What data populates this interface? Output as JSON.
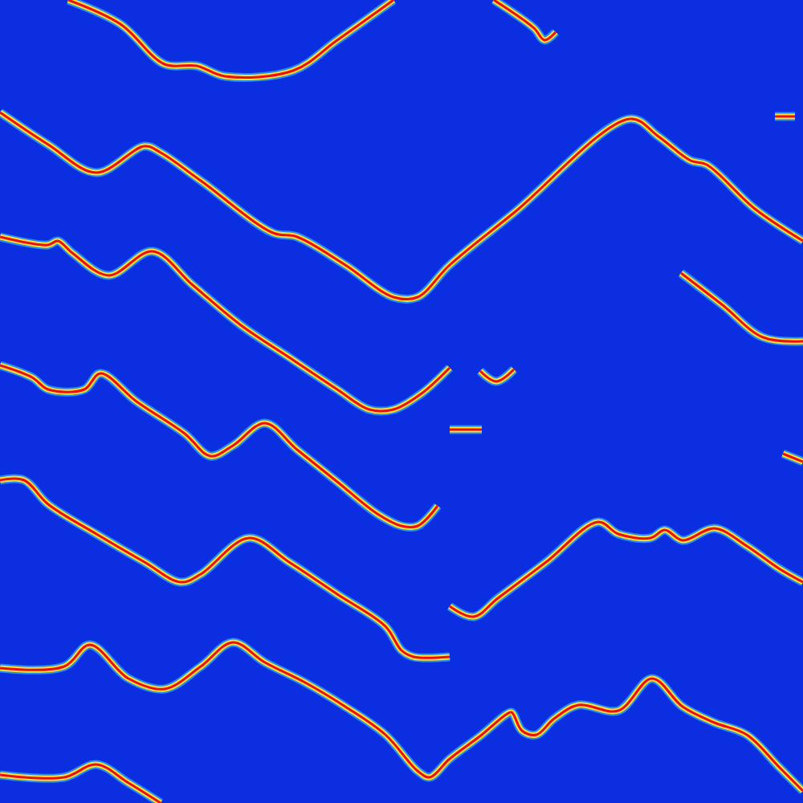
{
  "chart_data": {
    "type": "line",
    "xlim": [
      0,
      1000
    ],
    "ylim": [
      1000,
      0
    ],
    "xticks": [],
    "yticks": [],
    "grid": false,
    "tick_labels": false,
    "series": [
      {
        "color": "#e8101a",
        "x": [
          85,
          150,
          205,
          245,
          280,
          365,
          420,
          490
        ],
        "values": [
          0,
          30,
          80,
          82,
          95,
          88,
          50,
          0
        ]
      },
      {
        "color": "#e8101a",
        "x": [
          615,
          665,
          678,
          692
        ],
        "values": [
          0,
          35,
          50,
          40
        ]
      },
      {
        "color": "#e8101a",
        "x": [
          0,
          60,
          120,
          180,
          200,
          250,
          340,
          370,
          430,
          490,
          520,
          560,
          640,
          785,
          820,
          860,
          880,
          940,
          1000
        ],
        "values": [
          140,
          180,
          215,
          182,
          190,
          225,
          290,
          295,
          330,
          370,
          370,
          330,
          265,
          148,
          170,
          200,
          205,
          260,
          300
        ]
      },
      {
        "color": "#e8101a",
        "x": [
          965,
          990
        ],
        "values": [
          145,
          145
        ]
      },
      {
        "color": "#e8101a",
        "x": [
          0,
          60,
          72,
          90,
          135,
          190,
          240,
          300,
          360,
          420,
          460,
          490,
          525,
          560
        ],
        "values": [
          295,
          305,
          300,
          315,
          343,
          313,
          355,
          405,
          445,
          485,
          510,
          510,
          490,
          458
        ]
      },
      {
        "color": "#e8101a",
        "x": [
          848,
          900,
          950,
          1000
        ],
        "values": [
          340,
          380,
          420,
          425
        ]
      },
      {
        "color": "#e8101a",
        "x": [
          598,
          618,
          640
        ],
        "values": [
          462,
          475,
          460
        ]
      },
      {
        "color": "#e8101a",
        "x": [
          560,
          600
        ],
        "values": [
          535,
          535
        ]
      },
      {
        "color": "#e8101a",
        "x": [
          0,
          40,
          60,
          105,
          125,
          170,
          230,
          262,
          290,
          330,
          370,
          420,
          470,
          500,
          520,
          545
        ],
        "values": [
          455,
          470,
          485,
          485,
          465,
          500,
          540,
          568,
          555,
          527,
          560,
          600,
          640,
          655,
          655,
          630
        ]
      },
      {
        "color": "#e8101a",
        "x": [
          975,
          1000
        ],
        "values": [
          565,
          575
        ]
      },
      {
        "color": "#e8101a",
        "x": [
          0,
          30,
          60,
          120,
          180,
          225,
          250,
          310,
          360,
          420,
          480,
          500,
          515,
          560
        ],
        "values": [
          598,
          598,
          628,
          665,
          700,
          725,
          715,
          670,
          700,
          740,
          780,
          810,
          818,
          818
        ]
      },
      {
        "color": "#e8101a",
        "x": [
          560,
          590,
          620,
          680,
          745,
          770,
          810,
          828,
          850,
          890,
          930,
          970,
          1000
        ],
        "values": [
          755,
          768,
          745,
          700,
          650,
          665,
          670,
          660,
          673,
          658,
          680,
          708,
          725
        ]
      },
      {
        "color": "#e8101a",
        "x": [
          0,
          80,
          112,
          160,
          205,
          250,
          290,
          330,
          380,
          430,
          480,
          520,
          535,
          560,
          600,
          630,
          637,
          650,
          668,
          690,
          720,
          770,
          812,
          850,
          890,
          930,
          970,
          1000
        ],
        "values": [
          832,
          830,
          803,
          845,
          858,
          830,
          800,
          825,
          850,
          880,
          915,
          960,
          968,
          945,
          915,
          890,
          887,
          910,
          915,
          895,
          878,
          885,
          845,
          880,
          900,
          915,
          955,
          985
        ]
      },
      {
        "color": "#e8101a",
        "x": [
          0,
          80,
          120,
          160,
          200
        ],
        "values": [
          965,
          968,
          952,
          975,
          1000
        ]
      }
    ]
  }
}
